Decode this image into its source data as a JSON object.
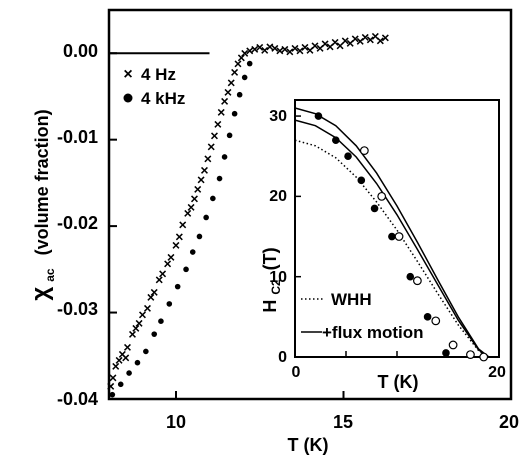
{
  "chart_data": [
    {
      "type": "scatter",
      "xlabel": "T (K)",
      "ylabel_main": "χ",
      "ylabel_sub": "ac",
      "ylabel_rest": "(volume fraction)",
      "xlim": [
        8,
        20
      ],
      "ylim": [
        -0.04,
        0.005
      ],
      "xticks": [
        10,
        15,
        20
      ],
      "yticks": [
        0.0,
        -0.01,
        -0.02,
        -0.03,
        -0.04
      ],
      "ytick_labels": [
        "0.00",
        "-0.01",
        "-0.02",
        "-0.03",
        "-0.04"
      ],
      "legend": {
        "position": "top-left",
        "items": [
          {
            "label": "4 Hz",
            "marker": "×"
          },
          {
            "label": "4 kHz",
            "marker": "●"
          }
        ]
      },
      "reference_line": {
        "x": [
          8,
          11
        ],
        "y": 0.0
      },
      "series": [
        {
          "name": "4 Hz",
          "marker": "cross",
          "points": [
            [
              8.05,
              -0.0385
            ],
            [
              8.12,
              -0.0375
            ],
            [
              8.2,
              -0.0362
            ],
            [
              8.3,
              -0.0355
            ],
            [
              8.4,
              -0.0348
            ],
            [
              8.5,
              -0.0352
            ],
            [
              8.55,
              -0.034
            ],
            [
              8.7,
              -0.0325
            ],
            [
              8.8,
              -0.0318
            ],
            [
              8.9,
              -0.0312
            ],
            [
              9.0,
              -0.0302
            ],
            [
              9.15,
              -0.0295
            ],
            [
              9.25,
              -0.0282
            ],
            [
              9.35,
              -0.0276
            ],
            [
              9.5,
              -0.0262
            ],
            [
              9.6,
              -0.0255
            ],
            [
              9.75,
              -0.0243
            ],
            [
              9.85,
              -0.0236
            ],
            [
              10.0,
              -0.0222
            ],
            [
              10.1,
              -0.0212
            ],
            [
              10.2,
              -0.0198
            ],
            [
              10.35,
              -0.0185
            ],
            [
              10.45,
              -0.0178
            ],
            [
              10.55,
              -0.0168
            ],
            [
              10.65,
              -0.0157
            ],
            [
              10.75,
              -0.0146
            ],
            [
              10.85,
              -0.0135
            ],
            [
              10.95,
              -0.0122
            ],
            [
              11.05,
              -0.0108
            ],
            [
              11.15,
              -0.0095
            ],
            [
              11.25,
              -0.0082
            ],
            [
              11.35,
              -0.0068
            ],
            [
              11.45,
              -0.0055
            ],
            [
              11.55,
              -0.0045
            ],
            [
              11.65,
              -0.0034
            ],
            [
              11.75,
              -0.0022
            ],
            [
              11.85,
              -0.0012
            ],
            [
              11.95,
              -0.0005
            ],
            [
              12.05,
              0.0
            ],
            [
              12.2,
              0.0003
            ],
            [
              12.35,
              0.0005
            ],
            [
              12.5,
              0.0007
            ],
            [
              12.65,
              0.0004
            ],
            [
              12.8,
              0.0008
            ],
            [
              12.95,
              0.0006
            ],
            [
              13.1,
              0.0003
            ],
            [
              13.25,
              0.0005
            ],
            [
              13.4,
              0.0002
            ],
            [
              13.55,
              0.0006
            ],
            [
              13.7,
              0.0003
            ],
            [
              13.85,
              0.0007
            ],
            [
              14.0,
              0.0004
            ],
            [
              14.15,
              0.0009
            ],
            [
              14.3,
              0.0006
            ],
            [
              14.45,
              0.0011
            ],
            [
              14.6,
              0.0008
            ],
            [
              14.75,
              0.0013
            ],
            [
              14.9,
              0.0009
            ],
            [
              15.05,
              0.0015
            ],
            [
              15.2,
              0.0012
            ],
            [
              15.35,
              0.0017
            ],
            [
              15.5,
              0.0014
            ],
            [
              15.65,
              0.0019
            ],
            [
              15.8,
              0.0016
            ],
            [
              15.95,
              0.002
            ],
            [
              16.1,
              0.0015
            ],
            [
              16.25,
              0.0018
            ]
          ]
        },
        {
          "name": "4 kHz",
          "marker": "dot",
          "points": [
            [
              8.1,
              -0.0395
            ],
            [
              8.35,
              -0.0383
            ],
            [
              8.6,
              -0.037
            ],
            [
              8.85,
              -0.0358
            ],
            [
              9.1,
              -0.0345
            ],
            [
              9.35,
              -0.0325
            ],
            [
              9.55,
              -0.031
            ],
            [
              9.8,
              -0.029
            ],
            [
              10.05,
              -0.027
            ],
            [
              10.3,
              -0.025
            ],
            [
              10.5,
              -0.023
            ],
            [
              10.7,
              -0.0212
            ],
            [
              10.9,
              -0.019
            ],
            [
              11.1,
              -0.0168
            ],
            [
              11.3,
              -0.0145
            ],
            [
              11.45,
              -0.012
            ],
            [
              11.6,
              -0.0095
            ],
            [
              11.75,
              -0.007
            ],
            [
              11.9,
              -0.0048
            ],
            [
              12.05,
              -0.0028
            ],
            [
              12.2,
              -0.0012
            ]
          ]
        }
      ]
    },
    {
      "type": "line",
      "inset": true,
      "xlabel": "T (K)",
      "ylabel_main": "H",
      "ylabel_sub": "C2",
      "ylabel_rest": "(T)",
      "xlim": [
        0,
        20
      ],
      "ylim": [
        0,
        32
      ],
      "xticks": [
        0,
        20
      ],
      "yticks": [
        0,
        10,
        20,
        30
      ],
      "legend": {
        "position": "bottom-left",
        "items": [
          {
            "label": "WHH",
            "style": "dotted"
          },
          {
            "label": "+flux motion",
            "style": "solid"
          }
        ]
      },
      "series": [
        {
          "name": "WHH",
          "style": "dotted",
          "x": [
            0,
            2,
            4,
            6,
            8,
            10,
            12,
            14,
            16,
            18,
            18.8
          ],
          "y": [
            27,
            26.3,
            24.8,
            22.4,
            19.3,
            15.8,
            11.9,
            7.9,
            4.0,
            0.8,
            0
          ]
        },
        {
          "name": "+flux motion",
          "style": "solid",
          "x": [
            0,
            2,
            4,
            6,
            8,
            10,
            12,
            14,
            16,
            18,
            19
          ],
          "y": [
            31,
            30.3,
            28.8,
            26.3,
            22.9,
            18.8,
            14.3,
            9.6,
            5.0,
            1.0,
            0
          ]
        },
        {
          "name": "+flux motion",
          "style": "solid",
          "x": [
            0,
            2,
            4,
            6,
            8,
            10,
            12,
            14,
            16,
            18,
            19
          ],
          "y": [
            29.5,
            28.8,
            27.3,
            24.9,
            21.6,
            17.7,
            13.4,
            9.0,
            4.6,
            0.9,
            0
          ]
        }
      ],
      "points_filled": [
        [
          2.3,
          30
        ],
        [
          4.0,
          27
        ],
        [
          5.2,
          25
        ],
        [
          6.5,
          22
        ],
        [
          7.8,
          18.5
        ],
        [
          9.5,
          15
        ],
        [
          11.3,
          10
        ],
        [
          13.0,
          5
        ],
        [
          14.8,
          0.5
        ]
      ],
      "points_open": [
        [
          6.8,
          25.7
        ],
        [
          8.5,
          20
        ],
        [
          10.2,
          15
        ],
        [
          12.0,
          9.5
        ],
        [
          13.8,
          4.5
        ],
        [
          15.5,
          1.5
        ],
        [
          17.2,
          0.3
        ],
        [
          18.5,
          0
        ]
      ]
    }
  ]
}
